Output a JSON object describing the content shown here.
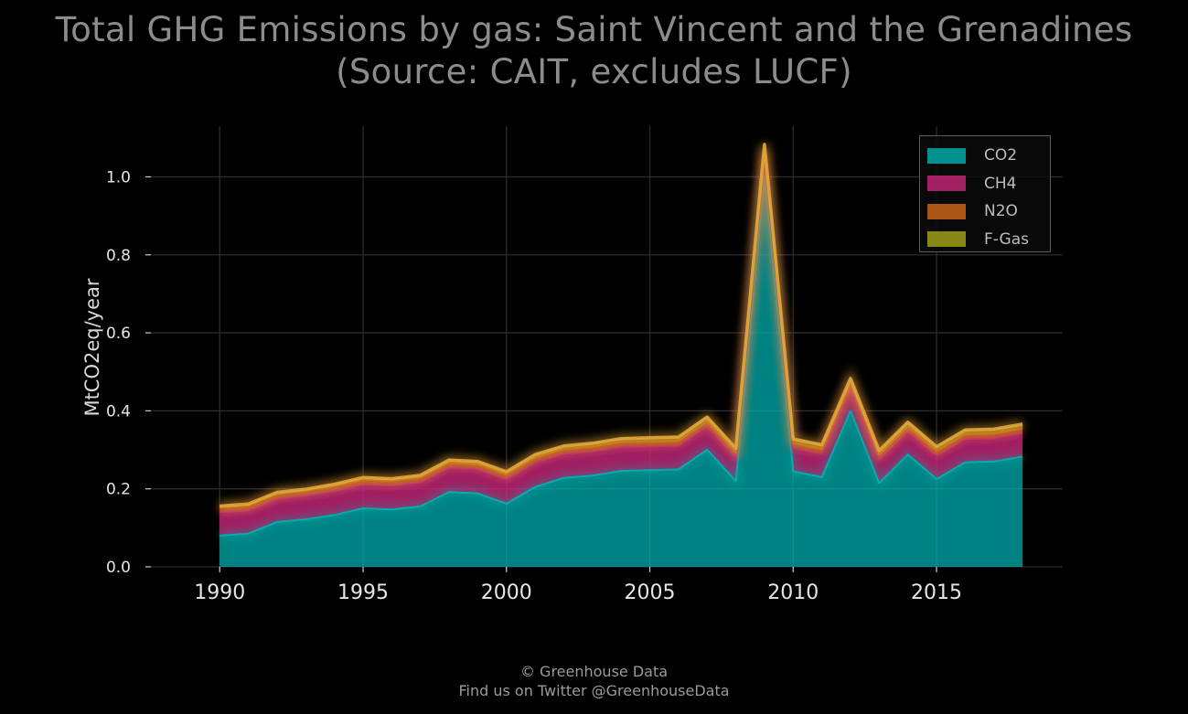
{
  "chart_data": {
    "type": "area",
    "stacked": true,
    "title_lines": [
      "Total GHG Emissions by gas: Saint Vincent and the Grenadines",
      "(Source: CAIT, excludes LUCF)"
    ],
    "xlabel": "",
    "ylabel": "MtCO2eq/year",
    "xlim": [
      1987.6,
      2019.4
    ],
    "ylim": [
      0,
      1.13
    ],
    "x_ticks": [
      "1990",
      "1995",
      "2000",
      "2005",
      "2010",
      "2015"
    ],
    "y_ticks": [
      "0.0",
      "0.2",
      "0.4",
      "0.6",
      "0.8",
      "1.0"
    ],
    "grid": true,
    "legend_position": "top-right",
    "x": [
      1990,
      1991,
      1992,
      1993,
      1994,
      1995,
      1996,
      1997,
      1998,
      1999,
      2000,
      2001,
      2002,
      2003,
      2004,
      2005,
      2006,
      2007,
      2008,
      2009,
      2010,
      2011,
      2012,
      2013,
      2014,
      2015,
      2016,
      2017,
      2018
    ],
    "series": [
      {
        "name": "CO2",
        "color": "#00b4b4",
        "values": [
          0.08,
          0.085,
          0.115,
          0.122,
          0.133,
          0.15,
          0.147,
          0.155,
          0.192,
          0.188,
          0.162,
          0.205,
          0.228,
          0.234,
          0.246,
          0.248,
          0.25,
          0.3,
          0.22,
          1.0,
          0.245,
          0.23,
          0.4,
          0.215,
          0.288,
          0.225,
          0.268,
          0.27,
          0.283
        ]
      },
      {
        "name": "CH4",
        "color": "#c8287a",
        "values": [
          0.06,
          0.06,
          0.06,
          0.061,
          0.062,
          0.062,
          0.062,
          0.062,
          0.063,
          0.063,
          0.063,
          0.063,
          0.062,
          0.062,
          0.062,
          0.061,
          0.061,
          0.061,
          0.061,
          0.06,
          0.06,
          0.06,
          0.06,
          0.06,
          0.06,
          0.06,
          0.06,
          0.06,
          0.06
        ]
      },
      {
        "name": "N2O",
        "color": "#d0681a",
        "values": [
          0.012,
          0.012,
          0.012,
          0.012,
          0.012,
          0.012,
          0.012,
          0.012,
          0.012,
          0.012,
          0.012,
          0.012,
          0.012,
          0.012,
          0.012,
          0.012,
          0.012,
          0.012,
          0.012,
          0.012,
          0.012,
          0.012,
          0.012,
          0.012,
          0.012,
          0.012,
          0.012,
          0.012,
          0.012
        ]
      },
      {
        "name": "F-Gas",
        "color": "#a8a818",
        "values": [
          0.004,
          0.004,
          0.004,
          0.004,
          0.005,
          0.005,
          0.005,
          0.006,
          0.007,
          0.007,
          0.007,
          0.008,
          0.008,
          0.009,
          0.009,
          0.01,
          0.01,
          0.011,
          0.011,
          0.011,
          0.011,
          0.011,
          0.011,
          0.011,
          0.011,
          0.011,
          0.011,
          0.011,
          0.011
        ]
      }
    ]
  },
  "footer": {
    "line1": "© Greenhouse Data",
    "line2": "Find us on Twitter @GreenhouseData"
  }
}
